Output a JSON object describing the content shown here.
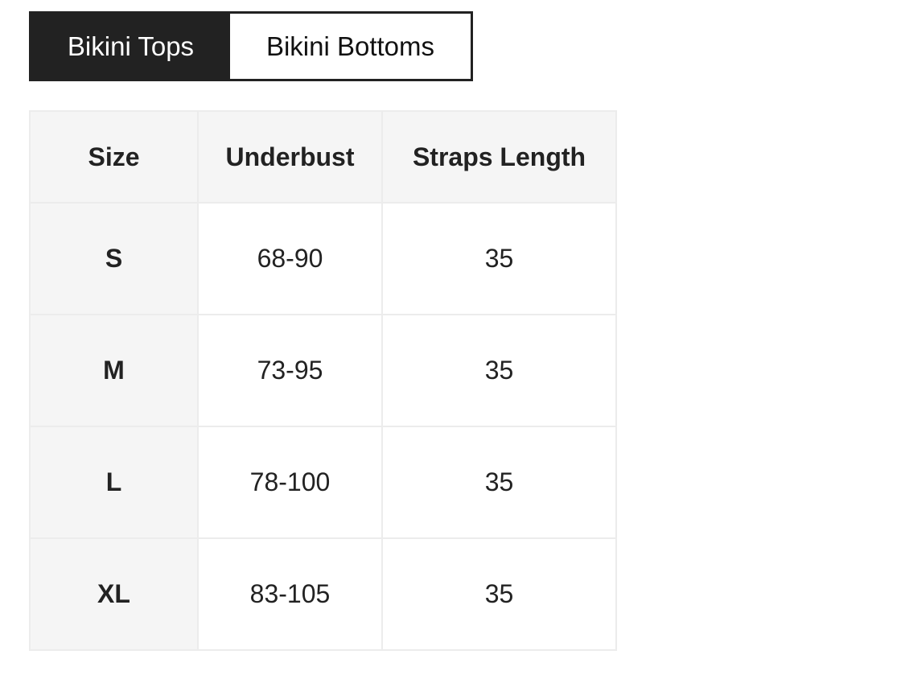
{
  "tabs": [
    {
      "label": "Bikini Tops",
      "active": true
    },
    {
      "label": "Bikini Bottoms",
      "active": false
    }
  ],
  "table": {
    "headers": [
      "Size",
      "Underbust",
      "Straps Length"
    ],
    "rows": [
      [
        "S",
        "68-90",
        "35"
      ],
      [
        "M",
        "73-95",
        "35"
      ],
      [
        "L",
        "78-100",
        "35"
      ],
      [
        "XL",
        "83-105",
        "35"
      ]
    ]
  },
  "colors": {
    "active_tab_bg": "#222222",
    "header_bg": "#f5f5f5",
    "border": "#ececec"
  }
}
